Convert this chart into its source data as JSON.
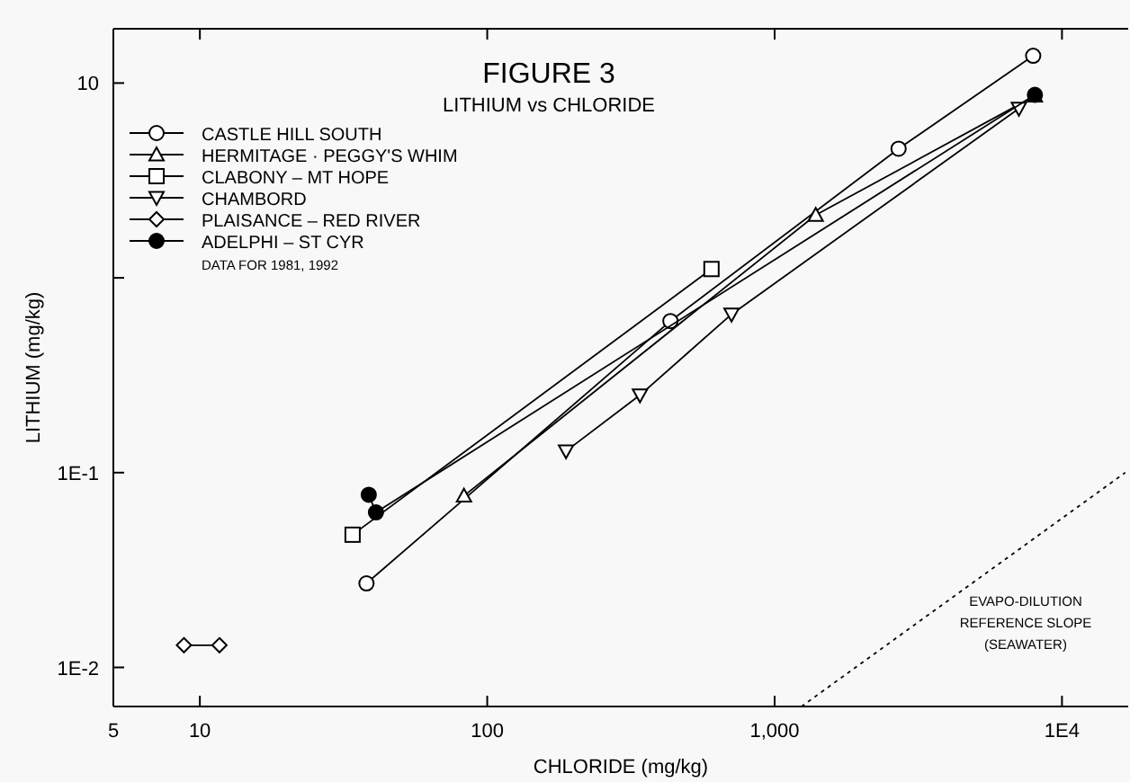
{
  "chart_data": {
    "type": "line",
    "title": "FIGURE 3",
    "subtitle": "LITHIUM vs CHLORIDE",
    "xlabel": "CHLORIDE (mg/kg)",
    "ylabel": "LITHIUM (mg/kg)",
    "log": "xy",
    "xlim": [
      5,
      17000
    ],
    "ylim": [
      0.0063,
      19
    ],
    "xticks": [
      5,
      10,
      100,
      {
        "value": 1000,
        "label": "1,000"
      },
      {
        "value": 10000,
        "label": "1E4"
      }
    ],
    "yticks": [
      {
        "value": 0.01,
        "label": "1E-2"
      },
      {
        "value": 0.1,
        "label": "1E-1"
      },
      {
        "value": 1,
        "label": null
      },
      10
    ],
    "legend": "top left",
    "grid": false,
    "line_style": "solid",
    "annotations": [
      "DATA FOR 1981, 1992",
      "EVAPO-DILUTION\nREFERENCE SLOPE\n(SEAWATER)"
    ],
    "series": [
      {
        "name": "CASTLE HILL SOUTH",
        "color": "#000000",
        "marker": "circle",
        "x": [
          38,
          434,
          2700,
          7940
        ],
        "values": [
          0.027,
          0.6,
          4.6,
          13.8
        ]
      },
      {
        "name": "HERMITAGE · PEGGY'S WHIM",
        "color": "#000000",
        "marker": "triangle",
        "x": [
          83,
          1390,
          8050
        ],
        "values": [
          0.076,
          2.1,
          8.6
        ]
      },
      {
        "name": "CLABONY – MT HOPE",
        "color": "#000000",
        "marker": "square",
        "x": [
          34,
          603
        ],
        "values": [
          0.048,
          1.11
        ]
      },
      {
        "name": "CHAMBORD",
        "color": "#000000",
        "marker": "triangle-down",
        "x": [
          188,
          340,
          708,
          7080
        ],
        "values": [
          0.129,
          0.25,
          0.65,
          7.4
        ]
      },
      {
        "name": "PLAISANCE – RED RIVER",
        "color": "#000000",
        "marker": "diamond",
        "x": [
          8.8,
          11.7
        ],
        "values": [
          0.013,
          0.013
        ]
      },
      {
        "name": "ADELPHI – ST CYR",
        "color": "#000000",
        "marker": "filled-circle",
        "x": [
          38.7,
          41,
          8050
        ],
        "values": [
          0.077,
          0.0625,
          8.7
        ]
      },
      {
        "color": "#000000",
        "marker": "none",
        "line_style": "dotted",
        "x": [
          1240,
          16600
        ],
        "values": [
          0.0063,
          0.1
        ]
      }
    ]
  }
}
